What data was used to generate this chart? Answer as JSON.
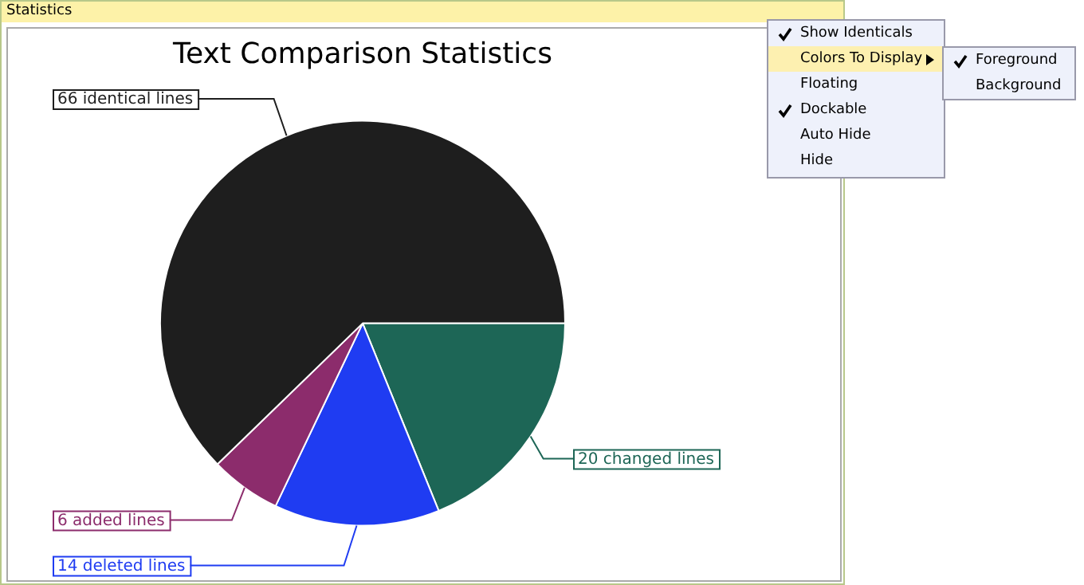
{
  "chart_data": {
    "type": "pie",
    "title": "Text Comparison Statistics",
    "categories": [
      "20 changed lines",
      "14 deleted lines",
      "6 added lines",
      "66 identical lines"
    ],
    "values": [
      20,
      14,
      6,
      66
    ],
    "colors": [
      "#1d6656",
      "#1f3cf2",
      "#8c2c6c",
      "#1e1e1e"
    ],
    "legend": false,
    "annotations": [
      "Statistics",
      "Show Identicals",
      "Colors To Display",
      "Foreground",
      "Background",
      "Floating",
      "Dockable",
      "Auto Hide",
      "Hide"
    ]
  }
}
